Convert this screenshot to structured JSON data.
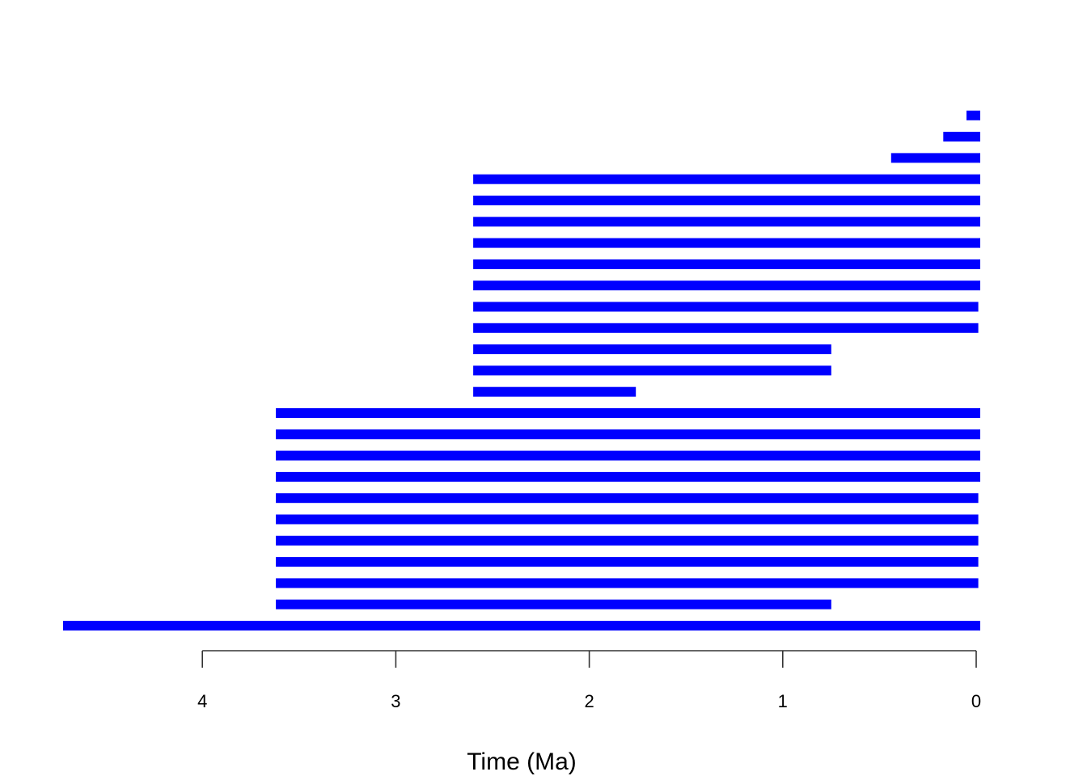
{
  "chart_data": {
    "type": "bar",
    "orientation": "horizontal-ranges",
    "xlabel": "Time (Ma)",
    "x_axis_reversed": true,
    "xlim": [
      4.8,
      0
    ],
    "xticks": [
      4,
      3,
      2,
      1,
      0
    ],
    "bar_color": "#0000ff",
    "grid": false,
    "legend": "none",
    "ranges": [
      {
        "start": 4.72,
        "end": 0.0
      },
      {
        "start": 3.62,
        "end": 0.77
      },
      {
        "start": 3.62,
        "end": 0.01
      },
      {
        "start": 3.62,
        "end": 0.01
      },
      {
        "start": 3.62,
        "end": 0.01
      },
      {
        "start": 3.62,
        "end": 0.01
      },
      {
        "start": 3.62,
        "end": 0.01
      },
      {
        "start": 3.62,
        "end": 0.0
      },
      {
        "start": 3.62,
        "end": 0.0
      },
      {
        "start": 3.62,
        "end": 0.0
      },
      {
        "start": 3.62,
        "end": 0.0
      },
      {
        "start": 2.6,
        "end": 1.78
      },
      {
        "start": 2.6,
        "end": 0.77
      },
      {
        "start": 2.6,
        "end": 0.77
      },
      {
        "start": 2.6,
        "end": 0.01
      },
      {
        "start": 2.6,
        "end": 0.01
      },
      {
        "start": 2.6,
        "end": 0.0
      },
      {
        "start": 2.6,
        "end": 0.0
      },
      {
        "start": 2.6,
        "end": 0.0
      },
      {
        "start": 2.6,
        "end": 0.0
      },
      {
        "start": 2.6,
        "end": 0.0
      },
      {
        "start": 2.6,
        "end": 0.0
      },
      {
        "start": 0.44,
        "end": 0.0
      },
      {
        "start": 0.17,
        "end": 0.0
      },
      {
        "start": 0.05,
        "end": 0.0
      }
    ]
  }
}
